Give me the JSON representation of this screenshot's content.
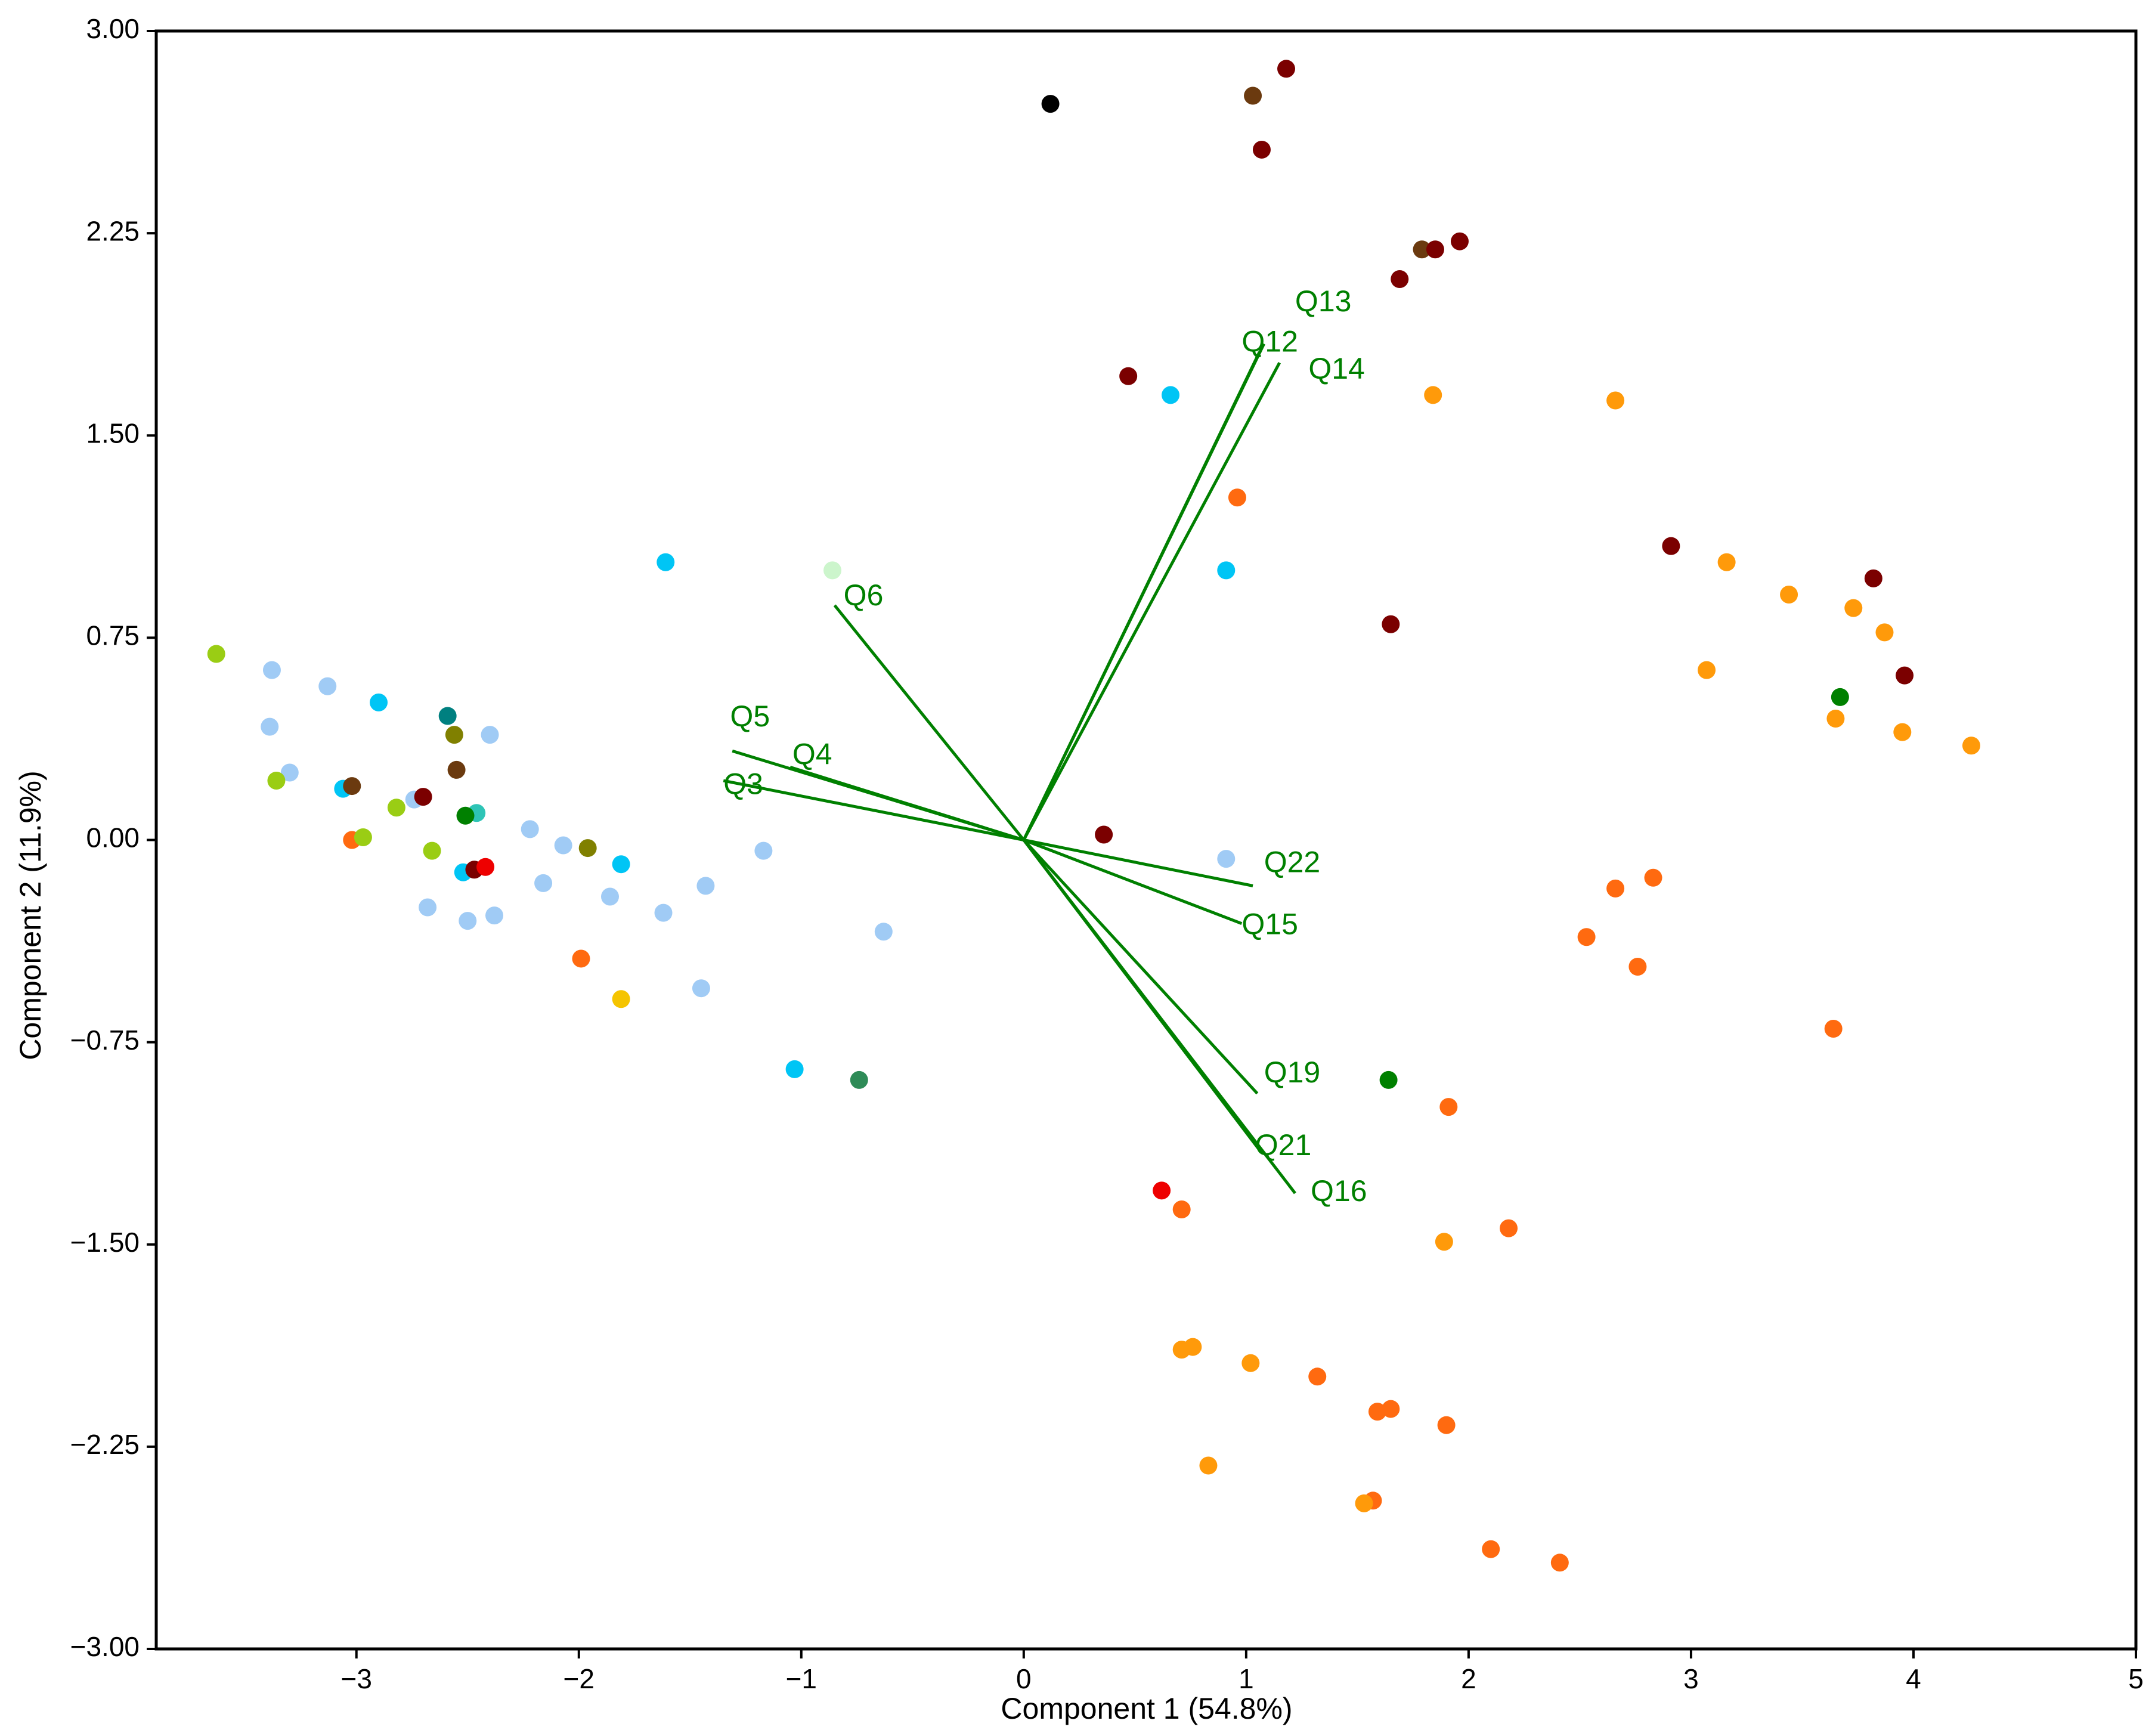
{
  "chart_data": {
    "type": "scatter",
    "title": "",
    "xlabel": "Component 1 (54.8%)",
    "ylabel": "Component 2 (11.9%)",
    "xlim": [
      -3.9,
      5.0
    ],
    "ylim": [
      -3.0,
      3.0
    ],
    "xticks": [
      -3,
      -2,
      -1,
      0,
      1,
      2,
      3,
      4,
      5
    ],
    "xtick_labels": [
      "−3",
      "−2",
      "−1",
      "0",
      "1",
      "2",
      "3",
      "4",
      "5"
    ],
    "yticks": [
      3.0,
      2.25,
      1.5,
      0.75,
      0.0,
      -0.75,
      -1.5,
      -2.25,
      -3.0
    ],
    "ytick_labels": [
      "3.00",
      "2.25",
      "1.50",
      "0.75",
      "0.00",
      "−0.75",
      "−1.50",
      "−2.25",
      "−3.00"
    ],
    "grid": false,
    "loading_color": "#008000",
    "loadings": [
      {
        "name": "Q13",
        "x": 1.08,
        "y": 1.84,
        "lx": 1.22,
        "ly": 1.99
      },
      {
        "name": "Q12",
        "x": 1.06,
        "y": 1.81,
        "lx": 0.98,
        "ly": 1.84
      },
      {
        "name": "Q14",
        "x": 1.15,
        "y": 1.77,
        "lx": 1.28,
        "ly": 1.74
      },
      {
        "name": "Q6",
        "x": -0.85,
        "y": 0.87,
        "lx": -0.81,
        "ly": 0.9
      },
      {
        "name": "Q5",
        "x": -1.31,
        "y": 0.33,
        "lx": -1.32,
        "ly": 0.45
      },
      {
        "name": "Q4",
        "x": -1.05,
        "y": 0.27,
        "lx": -1.04,
        "ly": 0.31
      },
      {
        "name": "Q3",
        "x": -1.35,
        "y": 0.22,
        "lx": -1.35,
        "ly": 0.2
      },
      {
        "name": "Q22",
        "x": 1.03,
        "y": -0.17,
        "lx": 1.08,
        "ly": -0.09
      },
      {
        "name": "Q15",
        "x": 0.98,
        "y": -0.31,
        "lx": 0.98,
        "ly": -0.32
      },
      {
        "name": "Q19",
        "x": 1.05,
        "y": -0.94,
        "lx": 1.08,
        "ly": -0.87
      },
      {
        "name": "Q21",
        "x": 1.06,
        "y": -1.15,
        "lx": 1.04,
        "ly": -1.14
      },
      {
        "name": "Q16",
        "x": 1.22,
        "y": -1.31,
        "lx": 1.29,
        "ly": -1.31
      }
    ],
    "points": [
      {
        "x": 0.12,
        "y": 2.73,
        "color": "#000000"
      },
      {
        "x": 1.18,
        "y": 2.86,
        "color": "#7b0000"
      },
      {
        "x": 1.03,
        "y": 2.76,
        "color": "#6b3a0f"
      },
      {
        "x": 1.07,
        "y": 2.56,
        "color": "#7b0000"
      },
      {
        "x": 1.79,
        "y": 2.19,
        "color": "#6b3a0f"
      },
      {
        "x": 1.85,
        "y": 2.19,
        "color": "#7b0000"
      },
      {
        "x": 1.96,
        "y": 2.22,
        "color": "#7b0000"
      },
      {
        "x": 1.69,
        "y": 2.08,
        "color": "#7b0000"
      },
      {
        "x": 0.47,
        "y": 1.72,
        "color": "#7b0000"
      },
      {
        "x": 0.66,
        "y": 1.65,
        "color": "#00c5f5"
      },
      {
        "x": 1.84,
        "y": 1.65,
        "color": "#ff9a0a"
      },
      {
        "x": 2.66,
        "y": 1.63,
        "color": "#ff9a0a"
      },
      {
        "x": 0.96,
        "y": 1.27,
        "color": "#ff6a10"
      },
      {
        "x": 2.91,
        "y": 1.09,
        "color": "#7b0000"
      },
      {
        "x": 3.16,
        "y": 1.03,
        "color": "#ff9a0a"
      },
      {
        "x": 0.91,
        "y": 1.0,
        "color": "#00c5f5"
      },
      {
        "x": 3.82,
        "y": 0.97,
        "color": "#7b0000"
      },
      {
        "x": 3.44,
        "y": 0.91,
        "color": "#ff9a0a"
      },
      {
        "x": 3.73,
        "y": 0.86,
        "color": "#ff9a0a"
      },
      {
        "x": 1.65,
        "y": 0.8,
        "color": "#7b0000"
      },
      {
        "x": 3.87,
        "y": 0.77,
        "color": "#ff9a0a"
      },
      {
        "x": 3.07,
        "y": 0.63,
        "color": "#ff9a0a"
      },
      {
        "x": 3.96,
        "y": 0.61,
        "color": "#7b0000"
      },
      {
        "x": 3.67,
        "y": 0.53,
        "color": "#008000"
      },
      {
        "x": 3.65,
        "y": 0.45,
        "color": "#ff9a0a"
      },
      {
        "x": 3.95,
        "y": 0.4,
        "color": "#ff9a0a"
      },
      {
        "x": 4.26,
        "y": 0.35,
        "color": "#ff9a0a"
      },
      {
        "x": 0.36,
        "y": 0.02,
        "color": "#7b0000"
      },
      {
        "x": 0.91,
        "y": -0.07,
        "color": "#a0cbf5"
      },
      {
        "x": 2.83,
        "y": -0.14,
        "color": "#ff6a10"
      },
      {
        "x": 2.66,
        "y": -0.18,
        "color": "#ff6a10"
      },
      {
        "x": 2.53,
        "y": -0.36,
        "color": "#ff6a10"
      },
      {
        "x": 2.76,
        "y": -0.47,
        "color": "#ff6a10"
      },
      {
        "x": 3.64,
        "y": -0.7,
        "color": "#ff6a10"
      },
      {
        "x": 1.64,
        "y": -0.89,
        "color": "#008000"
      },
      {
        "x": 1.91,
        "y": -0.99,
        "color": "#ff6a10"
      },
      {
        "x": 0.62,
        "y": -1.3,
        "color": "#ee0000"
      },
      {
        "x": 0.71,
        "y": -1.37,
        "color": "#ff6a10"
      },
      {
        "x": 2.18,
        "y": -1.44,
        "color": "#ff6a10"
      },
      {
        "x": 1.89,
        "y": -1.49,
        "color": "#ff9a0a"
      },
      {
        "x": 0.71,
        "y": -1.89,
        "color": "#ff9a0a"
      },
      {
        "x": 0.76,
        "y": -1.88,
        "color": "#ff9a0a"
      },
      {
        "x": 1.02,
        "y": -1.94,
        "color": "#ff9a0a"
      },
      {
        "x": 1.32,
        "y": -1.99,
        "color": "#ff6a10"
      },
      {
        "x": 1.59,
        "y": -2.12,
        "color": "#ff6a10"
      },
      {
        "x": 1.65,
        "y": -2.11,
        "color": "#ff6a10"
      },
      {
        "x": 1.9,
        "y": -2.17,
        "color": "#ff6a10"
      },
      {
        "x": 0.83,
        "y": -2.32,
        "color": "#ff9a0a"
      },
      {
        "x": 1.57,
        "y": -2.45,
        "color": "#ff6a10"
      },
      {
        "x": 1.53,
        "y": -2.46,
        "color": "#ff9a0a"
      },
      {
        "x": 2.1,
        "y": -2.63,
        "color": "#ff6a10"
      },
      {
        "x": 2.41,
        "y": -2.68,
        "color": "#ff6a10"
      },
      {
        "x": -3.63,
        "y": 0.69,
        "color": "#9acd14"
      },
      {
        "x": -3.38,
        "y": 0.63,
        "color": "#a0cbf5"
      },
      {
        "x": -3.13,
        "y": 0.57,
        "color": "#a0cbf5"
      },
      {
        "x": -2.9,
        "y": 0.51,
        "color": "#00c5f5"
      },
      {
        "x": -3.39,
        "y": 0.42,
        "color": "#a0cbf5"
      },
      {
        "x": -2.59,
        "y": 0.46,
        "color": "#008080"
      },
      {
        "x": -2.56,
        "y": 0.39,
        "color": "#808000"
      },
      {
        "x": -2.4,
        "y": 0.39,
        "color": "#a0cbf5"
      },
      {
        "x": -3.3,
        "y": 0.25,
        "color": "#a0cbf5"
      },
      {
        "x": -3.36,
        "y": 0.22,
        "color": "#9acd14"
      },
      {
        "x": -2.55,
        "y": 0.26,
        "color": "#6b3a0f"
      },
      {
        "x": -3.06,
        "y": 0.19,
        "color": "#00c5f5"
      },
      {
        "x": -3.02,
        "y": 0.2,
        "color": "#6b3a0f"
      },
      {
        "x": -2.74,
        "y": 0.15,
        "color": "#a0cbf5"
      },
      {
        "x": -2.7,
        "y": 0.16,
        "color": "#7b0000"
      },
      {
        "x": -2.82,
        "y": 0.12,
        "color": "#9acd14"
      },
      {
        "x": -2.46,
        "y": 0.1,
        "color": "#2ec4b6"
      },
      {
        "x": -2.51,
        "y": 0.09,
        "color": "#008000"
      },
      {
        "x": -2.22,
        "y": 0.04,
        "color": "#a0cbf5"
      },
      {
        "x": -3.02,
        "y": 0.0,
        "color": "#ff6a10"
      },
      {
        "x": -2.97,
        "y": 0.01,
        "color": "#9acd14"
      },
      {
        "x": -2.07,
        "y": -0.02,
        "color": "#a0cbf5"
      },
      {
        "x": -1.96,
        "y": -0.03,
        "color": "#808000"
      },
      {
        "x": -2.66,
        "y": -0.04,
        "color": "#9acd14"
      },
      {
        "x": -1.81,
        "y": -0.09,
        "color": "#00c5f5"
      },
      {
        "x": -2.52,
        "y": -0.12,
        "color": "#00c5f5"
      },
      {
        "x": -2.47,
        "y": -0.11,
        "color": "#7b0000"
      },
      {
        "x": -2.42,
        "y": -0.1,
        "color": "#ee0000"
      },
      {
        "x": -1.17,
        "y": -0.04,
        "color": "#a0cbf5"
      },
      {
        "x": -2.16,
        "y": -0.16,
        "color": "#a0cbf5"
      },
      {
        "x": -1.43,
        "y": -0.17,
        "color": "#a0cbf5"
      },
      {
        "x": -1.86,
        "y": -0.21,
        "color": "#a0cbf5"
      },
      {
        "x": -2.68,
        "y": -0.25,
        "color": "#a0cbf5"
      },
      {
        "x": -1.62,
        "y": -0.27,
        "color": "#a0cbf5"
      },
      {
        "x": -2.38,
        "y": -0.28,
        "color": "#a0cbf5"
      },
      {
        "x": -2.5,
        "y": -0.3,
        "color": "#a0cbf5"
      },
      {
        "x": -0.63,
        "y": -0.34,
        "color": "#a0cbf5"
      },
      {
        "x": -1.99,
        "y": -0.44,
        "color": "#ff6a10"
      },
      {
        "x": -1.45,
        "y": -0.55,
        "color": "#a0cbf5"
      },
      {
        "x": -1.81,
        "y": -0.59,
        "color": "#f5c400"
      },
      {
        "x": -1.61,
        "y": 1.03,
        "color": "#00c5f5"
      },
      {
        "x": -0.86,
        "y": 1.0,
        "color": "#ccf5cc"
      },
      {
        "x": -1.03,
        "y": -0.85,
        "color": "#00c5f5"
      },
      {
        "x": -0.74,
        "y": -0.89,
        "color": "#2e8b57"
      }
    ]
  }
}
